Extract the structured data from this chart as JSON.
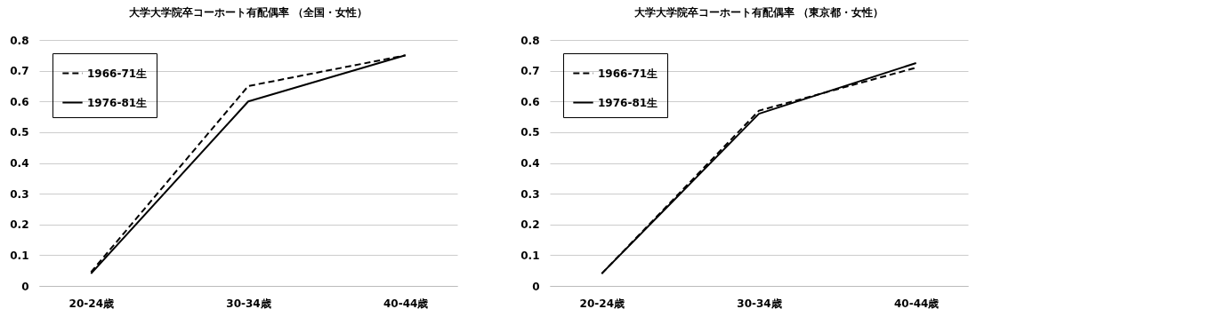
{
  "chart_data": [
    {
      "type": "line",
      "title": "大学大学院卒コーホート有配偶率 （全国・女性）",
      "categories": [
        "20-24歳",
        "30-34歳",
        "40-44歳"
      ],
      "series": [
        {
          "name": "1966-71生",
          "color": "#000000",
          "line_style": "dashed",
          "values": [
            0.045,
            0.65,
            0.75
          ]
        },
        {
          "name": "1976-81生",
          "color": "#000000",
          "line_style": "solid",
          "values": [
            0.04,
            0.6,
            0.75
          ]
        }
      ],
      "ylim": [
        0,
        0.8
      ],
      "yticks": [
        0,
        0.1,
        0.2,
        0.3,
        0.4,
        0.5,
        0.6,
        0.7,
        0.8
      ],
      "grid": "y",
      "legend": "top left"
    },
    {
      "type": "line",
      "title": "大学大学院卒コーホート有配偶率 （東京都・女性）",
      "categories": [
        "20-24歳",
        "30-34歳",
        "40-44歳"
      ],
      "series": [
        {
          "name": "1966-71生",
          "color": "#000000",
          "line_style": "dashed",
          "values": [
            0.04,
            0.57,
            0.71
          ]
        },
        {
          "name": "1976-81生",
          "color": "#000000",
          "line_style": "solid",
          "values": [
            0.04,
            0.56,
            0.725
          ]
        }
      ],
      "ylim": [
        0,
        0.8
      ],
      "yticks": [
        0,
        0.1,
        0.2,
        0.3,
        0.4,
        0.5,
        0.6,
        0.7,
        0.8
      ],
      "grid": "y",
      "legend": "top left"
    }
  ]
}
